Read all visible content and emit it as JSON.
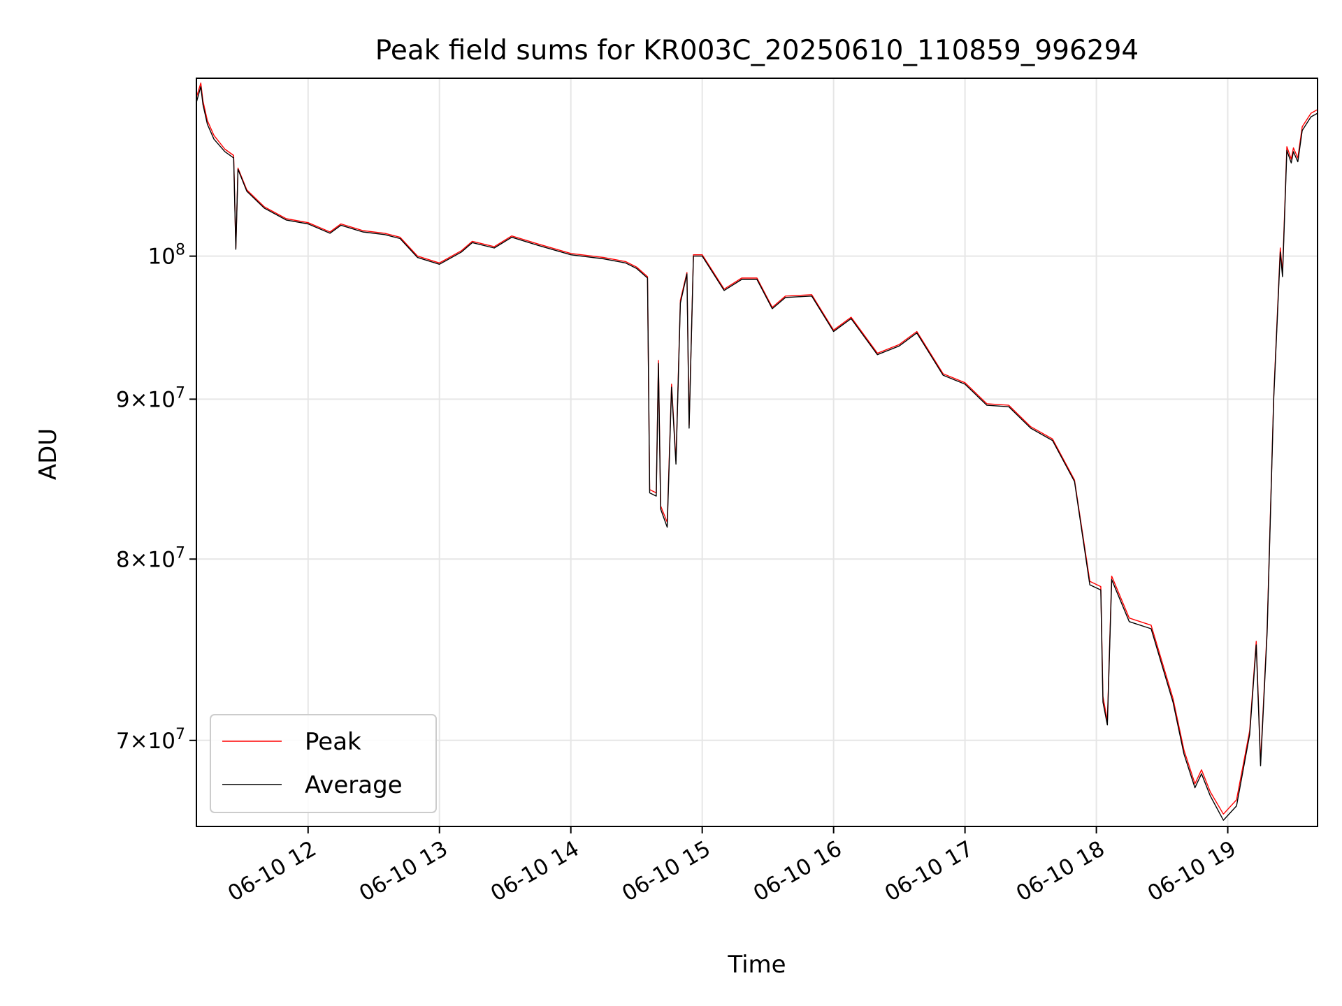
{
  "chart_data": {
    "type": "line",
    "title": "Peak field sums for KR003C_20250610_110859_996294",
    "xlabel": "Time",
    "ylabel": "ADU",
    "yscale": "log",
    "grid": true,
    "legend_position": "lower-left",
    "xlim": [
      "2025-06-10 11:09",
      "2025-06-10 19:41"
    ],
    "ylim": [
      65700000,
      114000000
    ],
    "x_ticks": [
      {
        "value": "2025-06-10 12:00",
        "label": "06-10 12"
      },
      {
        "value": "2025-06-10 13:00",
        "label": "06-10 13"
      },
      {
        "value": "2025-06-10 14:00",
        "label": "06-10 14"
      },
      {
        "value": "2025-06-10 15:00",
        "label": "06-10 15"
      },
      {
        "value": "2025-06-10 16:00",
        "label": "06-10 16"
      },
      {
        "value": "2025-06-10 17:00",
        "label": "06-10 17"
      },
      {
        "value": "2025-06-10 18:00",
        "label": "06-10 18"
      },
      {
        "value": "2025-06-10 19:00",
        "label": "06-10 19"
      }
    ],
    "y_ticks": [
      {
        "value": 70000000,
        "mant": "7",
        "sep": "×",
        "base": "10",
        "exp": "7"
      },
      {
        "value": 80000000,
        "mant": "8",
        "sep": "×",
        "base": "10",
        "exp": "7"
      },
      {
        "value": 90000000,
        "mant": "9",
        "sep": "×",
        "base": "10",
        "exp": "7"
      },
      {
        "value": 100000000,
        "mant": "",
        "sep": "",
        "base": "10",
        "exp": "8"
      }
    ],
    "series": [
      {
        "name": "Peak",
        "color": "#ff0000",
        "points": [
          [
            "2025-06-10 11:09",
            112400000
          ],
          [
            "2025-06-10 11:11",
            113600000
          ],
          [
            "2025-06-10 11:12",
            112100000
          ],
          [
            "2025-06-10 11:14",
            110500000
          ],
          [
            "2025-06-10 11:17",
            109300000
          ],
          [
            "2025-06-10 11:22",
            108200000
          ],
          [
            "2025-06-10 11:26",
            107700000
          ],
          [
            "2025-06-10 11:27",
            100600000
          ],
          [
            "2025-06-10 11:28",
            106700000
          ],
          [
            "2025-06-10 11:32",
            105000000
          ],
          [
            "2025-06-10 11:40",
            103700000
          ],
          [
            "2025-06-10 11:50",
            102800000
          ],
          [
            "2025-06-10 12:00",
            102500000
          ],
          [
            "2025-06-10 12:10",
            101800000
          ],
          [
            "2025-06-10 12:15",
            102400000
          ],
          [
            "2025-06-10 12:25",
            101900000
          ],
          [
            "2025-06-10 12:35",
            101700000
          ],
          [
            "2025-06-10 12:42",
            101400000
          ],
          [
            "2025-06-10 12:50",
            100000000
          ],
          [
            "2025-06-10 13:00",
            99500000
          ],
          [
            "2025-06-10 13:10",
            100400000
          ],
          [
            "2025-06-10 13:15",
            101100000
          ],
          [
            "2025-06-10 13:25",
            100700000
          ],
          [
            "2025-06-10 13:33",
            101500000
          ],
          [
            "2025-06-10 13:45",
            100900000
          ],
          [
            "2025-06-10 14:00",
            100200000
          ],
          [
            "2025-06-10 14:15",
            99900000
          ],
          [
            "2025-06-10 14:25",
            99600000
          ],
          [
            "2025-06-10 14:30",
            99200000
          ],
          [
            "2025-06-10 14:35",
            98500000
          ],
          [
            "2025-06-10 14:36",
            84200000
          ],
          [
            "2025-06-10 14:39",
            84000000
          ],
          [
            "2025-06-10 14:40",
            92600000
          ],
          [
            "2025-06-10 14:41",
            83200000
          ],
          [
            "2025-06-10 14:44",
            82200000
          ],
          [
            "2025-06-10 14:46",
            91000000
          ],
          [
            "2025-06-10 14:48",
            86000000
          ],
          [
            "2025-06-10 14:50",
            96800000
          ],
          [
            "2025-06-10 14:53",
            98800000
          ],
          [
            "2025-06-10 14:54",
            88300000
          ],
          [
            "2025-06-10 14:56",
            100100000
          ],
          [
            "2025-06-10 15:00",
            100100000
          ],
          [
            "2025-06-10 15:04",
            99100000
          ],
          [
            "2025-06-10 15:10",
            97600000
          ],
          [
            "2025-06-10 15:18",
            98400000
          ],
          [
            "2025-06-10 15:25",
            98400000
          ],
          [
            "2025-06-10 15:32",
            96300000
          ],
          [
            "2025-06-10 15:38",
            97100000
          ],
          [
            "2025-06-10 15:50",
            97200000
          ],
          [
            "2025-06-10 16:00",
            94700000
          ],
          [
            "2025-06-10 16:08",
            95600000
          ],
          [
            "2025-06-10 16:20",
            93100000
          ],
          [
            "2025-06-10 16:30",
            93700000
          ],
          [
            "2025-06-10 16:38",
            94600000
          ],
          [
            "2025-06-10 16:50",
            91700000
          ],
          [
            "2025-06-10 17:00",
            91100000
          ],
          [
            "2025-06-10 17:10",
            89700000
          ],
          [
            "2025-06-10 17:20",
            89600000
          ],
          [
            "2025-06-10 17:30",
            88200000
          ],
          [
            "2025-06-10 17:40",
            87400000
          ],
          [
            "2025-06-10 17:50",
            84800000
          ],
          [
            "2025-06-10 17:57",
            78700000
          ],
          [
            "2025-06-10 18:02",
            78400000
          ],
          [
            "2025-06-10 18:03",
            72300000
          ],
          [
            "2025-06-10 18:05",
            71000000
          ],
          [
            "2025-06-10 18:07",
            79000000
          ],
          [
            "2025-06-10 18:15",
            76600000
          ],
          [
            "2025-06-10 18:25",
            76200000
          ],
          [
            "2025-06-10 18:35",
            72200000
          ],
          [
            "2025-06-10 18:40",
            69500000
          ],
          [
            "2025-06-10 18:45",
            67800000
          ],
          [
            "2025-06-10 18:48",
            68500000
          ],
          [
            "2025-06-10 18:52",
            67400000
          ],
          [
            "2025-06-10 18:58",
            66300000
          ],
          [
            "2025-06-10 19:04",
            67000000
          ],
          [
            "2025-06-10 19:10",
            70500000
          ],
          [
            "2025-06-10 19:13",
            75300000
          ],
          [
            "2025-06-10 19:15",
            68900000
          ],
          [
            "2025-06-10 19:18",
            76000000
          ],
          [
            "2025-06-10 19:21",
            90200000
          ],
          [
            "2025-06-10 19:24",
            100600000
          ],
          [
            "2025-06-10 19:25",
            98800000
          ],
          [
            "2025-06-10 19:27",
            108400000
          ],
          [
            "2025-06-10 19:29",
            107400000
          ],
          [
            "2025-06-10 19:30",
            108300000
          ],
          [
            "2025-06-10 19:32",
            107500000
          ],
          [
            "2025-06-10 19:34",
            110000000
          ],
          [
            "2025-06-10 19:38",
            111100000
          ],
          [
            "2025-06-10 19:41",
            111400000
          ]
        ]
      },
      {
        "name": "Average",
        "color": "#000000",
        "points": [
          [
            "2025-06-10 11:09",
            112000000
          ],
          [
            "2025-06-10 11:11",
            113300000
          ],
          [
            "2025-06-10 11:12",
            111800000
          ],
          [
            "2025-06-10 11:14",
            110200000
          ],
          [
            "2025-06-10 11:17",
            109000000
          ],
          [
            "2025-06-10 11:22",
            108000000
          ],
          [
            "2025-06-10 11:26",
            107500000
          ],
          [
            "2025-06-10 11:27",
            100500000
          ],
          [
            "2025-06-10 11:28",
            106600000
          ],
          [
            "2025-06-10 11:32",
            104900000
          ],
          [
            "2025-06-10 11:40",
            103600000
          ],
          [
            "2025-06-10 11:50",
            102700000
          ],
          [
            "2025-06-10 12:00",
            102400000
          ],
          [
            "2025-06-10 12:10",
            101700000
          ],
          [
            "2025-06-10 12:15",
            102300000
          ],
          [
            "2025-06-10 12:25",
            101800000
          ],
          [
            "2025-06-10 12:35",
            101600000
          ],
          [
            "2025-06-10 12:42",
            101300000
          ],
          [
            "2025-06-10 12:50",
            99900000
          ],
          [
            "2025-06-10 13:00",
            99400000
          ],
          [
            "2025-06-10 13:10",
            100300000
          ],
          [
            "2025-06-10 13:15",
            101000000
          ],
          [
            "2025-06-10 13:25",
            100600000
          ],
          [
            "2025-06-10 13:33",
            101400000
          ],
          [
            "2025-06-10 13:45",
            100800000
          ],
          [
            "2025-06-10 14:00",
            100100000
          ],
          [
            "2025-06-10 14:15",
            99800000
          ],
          [
            "2025-06-10 14:25",
            99500000
          ],
          [
            "2025-06-10 14:30",
            99100000
          ],
          [
            "2025-06-10 14:35",
            98400000
          ],
          [
            "2025-06-10 14:36",
            84000000
          ],
          [
            "2025-06-10 14:39",
            83800000
          ],
          [
            "2025-06-10 14:40",
            92400000
          ],
          [
            "2025-06-10 14:41",
            83000000
          ],
          [
            "2025-06-10 14:44",
            81900000
          ],
          [
            "2025-06-10 14:46",
            90800000
          ],
          [
            "2025-06-10 14:48",
            85800000
          ],
          [
            "2025-06-10 14:50",
            96600000
          ],
          [
            "2025-06-10 14:53",
            98700000
          ],
          [
            "2025-06-10 14:54",
            88100000
          ],
          [
            "2025-06-10 14:56",
            100000000
          ],
          [
            "2025-06-10 15:00",
            100000000
          ],
          [
            "2025-06-10 15:04",
            99000000
          ],
          [
            "2025-06-10 15:10",
            97500000
          ],
          [
            "2025-06-10 15:18",
            98300000
          ],
          [
            "2025-06-10 15:25",
            98300000
          ],
          [
            "2025-06-10 15:32",
            96200000
          ],
          [
            "2025-06-10 15:38",
            97000000
          ],
          [
            "2025-06-10 15:50",
            97100000
          ],
          [
            "2025-06-10 16:00",
            94600000
          ],
          [
            "2025-06-10 16:08",
            95500000
          ],
          [
            "2025-06-10 16:20",
            93000000
          ],
          [
            "2025-06-10 16:30",
            93600000
          ],
          [
            "2025-06-10 16:38",
            94500000
          ],
          [
            "2025-06-10 16:50",
            91600000
          ],
          [
            "2025-06-10 17:00",
            91000000
          ],
          [
            "2025-06-10 17:10",
            89600000
          ],
          [
            "2025-06-10 17:20",
            89500000
          ],
          [
            "2025-06-10 17:30",
            88100000
          ],
          [
            "2025-06-10 17:40",
            87300000
          ],
          [
            "2025-06-10 17:50",
            84700000
          ],
          [
            "2025-06-10 17:57",
            78500000
          ],
          [
            "2025-06-10 18:02",
            78200000
          ],
          [
            "2025-06-10 18:03",
            72000000
          ],
          [
            "2025-06-10 18:05",
            70800000
          ],
          [
            "2025-06-10 18:07",
            78800000
          ],
          [
            "2025-06-10 18:15",
            76400000
          ],
          [
            "2025-06-10 18:25",
            76000000
          ],
          [
            "2025-06-10 18:35",
            72000000
          ],
          [
            "2025-06-10 18:40",
            69300000
          ],
          [
            "2025-06-10 18:45",
            67600000
          ],
          [
            "2025-06-10 18:48",
            68300000
          ],
          [
            "2025-06-10 18:52",
            67200000
          ],
          [
            "2025-06-10 18:58",
            66000000
          ],
          [
            "2025-06-10 19:04",
            66700000
          ],
          [
            "2025-06-10 19:10",
            70300000
          ],
          [
            "2025-06-10 19:13",
            75100000
          ],
          [
            "2025-06-10 19:15",
            68700000
          ],
          [
            "2025-06-10 19:18",
            75800000
          ],
          [
            "2025-06-10 19:21",
            90000000
          ],
          [
            "2025-06-10 19:24",
            100300000
          ],
          [
            "2025-06-10 19:25",
            98500000
          ],
          [
            "2025-06-10 19:27",
            108100000
          ],
          [
            "2025-06-10 19:29",
            107100000
          ],
          [
            "2025-06-10 19:30",
            108000000
          ],
          [
            "2025-06-10 19:32",
            107200000
          ],
          [
            "2025-06-10 19:34",
            109700000
          ],
          [
            "2025-06-10 19:38",
            110800000
          ],
          [
            "2025-06-10 19:41",
            111100000
          ]
        ]
      }
    ]
  }
}
